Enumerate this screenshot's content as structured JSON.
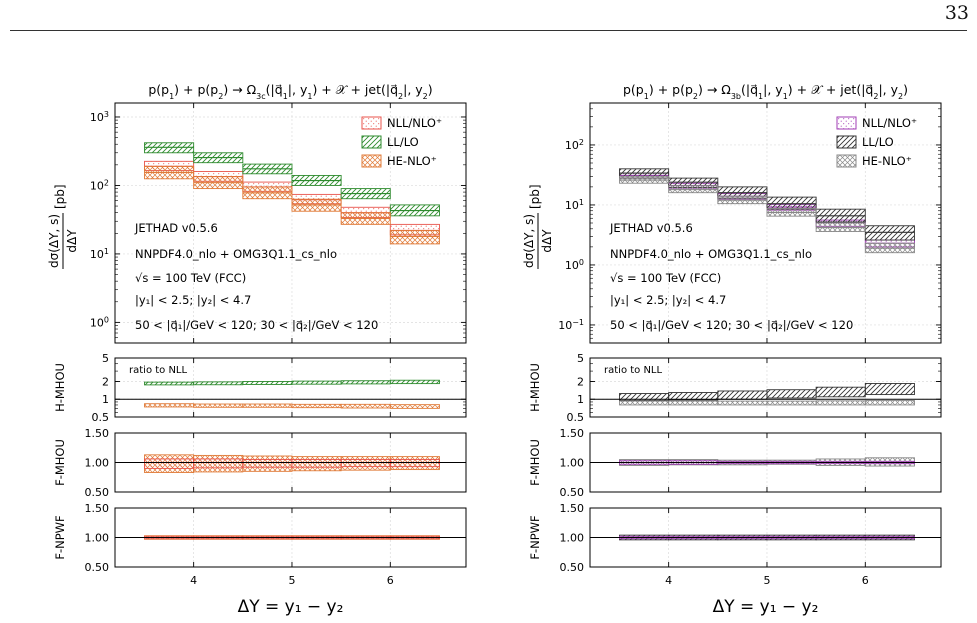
{
  "page": {
    "number": "33"
  },
  "chart_data": [
    {
      "type": "area",
      "panel": "left",
      "title": "p(p₁) + p(p₂) → Ω₃꜀(|q⃗₁|, y₁) + 𝒳 + jet(|q⃗₂|, y₂)",
      "title_parts": {
        "pre": "p(p",
        "s1": "1",
        "mid1": ") + p(p",
        "s2": "2",
        "mid2": ") → Ω",
        "sub": "3c",
        "post": "(|q⃗",
        "s3": "1",
        "c1": "|, y",
        "s4": "1",
        "c2": ") + 𝒳 + jet(|q⃗",
        "s5": "2",
        "c3": "|, y",
        "s6": "2",
        "end": ")"
      },
      "xlabel": "ΔY = y₁ − y₂",
      "ylabel": "dσ(ΔY, s)/dΔY [pb]",
      "x_ticks": [
        4,
        5,
        6
      ],
      "x_bins": [
        [
          3.5,
          4.0
        ],
        [
          4.0,
          4.5
        ],
        [
          4.5,
          5.0
        ],
        [
          5.0,
          5.5
        ],
        [
          5.5,
          6.0
        ],
        [
          6.0,
          6.5
        ]
      ],
      "xlim": [
        3.2,
        6.77
      ],
      "main": {
        "scale": "log",
        "ylim": [
          0.5,
          1600
        ],
        "y_ticks": [
          {
            "v": 1,
            "label": "10",
            "exp": "0"
          },
          {
            "v": 10,
            "label": "10",
            "exp": "1"
          },
          {
            "v": 100,
            "label": "10",
            "exp": "2"
          },
          {
            "v": 1000,
            "label": "10",
            "exp": "3"
          }
        ],
        "legend": {
          "position": "top-right",
          "entries": [
            "NLL/NLO⁺",
            "LL/LO",
            "HE-NLO⁺"
          ]
        },
        "annotations": [
          "JETHAD v0.5.6",
          "NNPDF4.0_nlo + OMG3Q1.1_cs_nlo",
          "√s = 100 TeV (FCC)",
          "|y₁| < 2.5;  |y₂| < 4.7",
          "50 < |q⃗₁|/GeV < 120;  30 < |q⃗₂|/GeV < 120"
        ],
        "series": [
          {
            "name": "NLL/NLO⁺",
            "color": "#e8534b",
            "pattern": "dots",
            "central": [
              190,
              135,
              95,
              62,
              40,
              22
            ],
            "low": [
              165,
              115,
              82,
              54,
              34,
              19
            ],
            "high": [
              225,
              160,
              112,
              74,
              48,
              27
            ]
          },
          {
            "name": "LL/LO",
            "color": "#2e8b2e",
            "pattern": "diag",
            "central": [
              360,
              255,
              175,
              118,
              76,
              43
            ],
            "low": [
              300,
              215,
              148,
              100,
              64,
              36
            ],
            "high": [
              420,
              300,
              205,
              140,
              90,
              52
            ]
          },
          {
            "name": "HE-NLO⁺",
            "color": "#e07b39",
            "pattern": "cross",
            "central": [
              155,
              110,
              78,
              52,
              33,
              18
            ],
            "low": [
              125,
              90,
              64,
              42,
              27,
              14
            ],
            "high": [
              190,
              135,
              95,
              63,
              40,
              22
            ]
          }
        ]
      },
      "ratio_panels": [
        {
          "ylabel": "H-MHOU",
          "scale": "log",
          "ylim": [
            0.5,
            5
          ],
          "y_ticks": [
            {
              "v": 0.5,
              "label": "0.5"
            },
            {
              "v": 1,
              "label": "1"
            },
            {
              "v": 2,
              "label": "2"
            },
            {
              "v": 5,
              "label": "5"
            }
          ],
          "refline": 1,
          "note": "ratio to NLL",
          "bands": [
            {
              "series": "LL/LO",
              "color": "#2e8b2e",
              "pattern": "diag",
              "low": [
                1.75,
                1.76,
                1.78,
                1.8,
                1.82,
                1.84
              ],
              "high": [
                1.95,
                1.97,
                2.0,
                2.03,
                2.06,
                2.1
              ]
            },
            {
              "series": "HE-NLO⁺",
              "color": "#e07b39",
              "pattern": "cross",
              "low": [
                0.74,
                0.73,
                0.73,
                0.72,
                0.71,
                0.7
              ],
              "high": [
                0.84,
                0.83,
                0.83,
                0.82,
                0.82,
                0.81
              ]
            }
          ]
        },
        {
          "ylabel": "F-MHOU",
          "scale": "linear",
          "ylim": [
            0.5,
            1.5
          ],
          "y_ticks": [
            {
              "v": 0.5,
              "label": "0.50"
            },
            {
              "v": 1.0,
              "label": "1.00"
            },
            {
              "v": 1.5,
              "label": "1.50"
            }
          ],
          "refline": 1,
          "bands": [
            {
              "series": "HE-NLO⁺",
              "color": "#e07b39",
              "pattern": "cross",
              "low": [
                0.83,
                0.84,
                0.85,
                0.86,
                0.87,
                0.88
              ],
              "high": [
                1.13,
                1.12,
                1.11,
                1.1,
                1.1,
                1.1
              ]
            },
            {
              "series": "NLL/NLO⁺",
              "color": "#e8534b",
              "pattern": "dots",
              "low": [
                0.9,
                0.91,
                0.92,
                0.92,
                0.93,
                0.93
              ],
              "high": [
                1.06,
                1.06,
                1.05,
                1.05,
                1.05,
                1.05
              ]
            }
          ]
        },
        {
          "ylabel": "F-NPWF",
          "scale": "linear",
          "ylim": [
            0.5,
            1.5
          ],
          "y_ticks": [
            {
              "v": 0.5,
              "label": "0.50"
            },
            {
              "v": 1.0,
              "label": "1.00"
            },
            {
              "v": 1.5,
              "label": "1.50"
            }
          ],
          "refline": 1,
          "bands": [
            {
              "series": "HE-NLO⁺",
              "color": "#e07b39",
              "pattern": "cross",
              "low": [
                0.97,
                0.97,
                0.97,
                0.97,
                0.97,
                0.97
              ],
              "high": [
                1.03,
                1.03,
                1.03,
                1.03,
                1.03,
                1.03
              ]
            },
            {
              "series": "NLL/NLO⁺",
              "color": "#e8534b",
              "pattern": "dots",
              "low": [
                0.98,
                0.98,
                0.98,
                0.98,
                0.98,
                0.98
              ],
              "high": [
                1.02,
                1.02,
                1.02,
                1.02,
                1.02,
                1.02
              ]
            }
          ]
        }
      ]
    },
    {
      "type": "area",
      "panel": "right",
      "title": "p(p₁) + p(p₂) → Ω₃ᵦ(|q⃗₁|, y₁) + 𝒳 + jet(|q⃗₂|, y₂)",
      "title_parts": {
        "pre": "p(p",
        "s1": "1",
        "mid1": ") + p(p",
        "s2": "2",
        "mid2": ") → Ω",
        "sub": "3b",
        "post": "(|q⃗",
        "s3": "1",
        "c1": "|, y",
        "s4": "1",
        "c2": ") + 𝒳 + jet(|q⃗",
        "s5": "2",
        "c3": "|, y",
        "s6": "2",
        "end": ")"
      },
      "xlabel": "ΔY = y₁ − y₂",
      "ylabel": "dσ(ΔY, s)/dΔY [pb]",
      "x_ticks": [
        4,
        5,
        6
      ],
      "x_bins": [
        [
          3.5,
          4.0
        ],
        [
          4.0,
          4.5
        ],
        [
          4.5,
          5.0
        ],
        [
          5.0,
          5.5
        ],
        [
          5.5,
          6.0
        ],
        [
          6.0,
          6.5
        ]
      ],
      "xlim": [
        3.2,
        6.77
      ],
      "main": {
        "scale": "log",
        "ylim": [
          0.05,
          500
        ],
        "y_ticks": [
          {
            "v": 0.1,
            "label": "10",
            "exp": "−1"
          },
          {
            "v": 1,
            "label": "10",
            "exp": "0"
          },
          {
            "v": 10,
            "label": "10",
            "exp": "1"
          },
          {
            "v": 100,
            "label": "10",
            "exp": "2"
          }
        ],
        "legend": {
          "position": "top-right",
          "entries": [
            "NLL/NLO⁺",
            "LL/LO",
            "HE-NLO⁺"
          ]
        },
        "annotations": [
          "JETHAD v0.5.6",
          "NNPDF4.0_nlo + OMG3Q1.1_cs_nlo",
          "√s = 100 TeV (FCC)",
          "|y₁| < 2.5;  |y₂| < 4.7",
          "50 < |q⃗₁|/GeV < 120;  30 < |q⃗₂|/GeV < 120"
        ],
        "series": [
          {
            "name": "NLL/NLO⁺",
            "color": "#a03cb4",
            "pattern": "dots",
            "central": [
              31,
              21,
              14,
              9.2,
              5.0,
              2.3
            ],
            "low": [
              28,
              19,
              12.5,
              8.2,
              4.4,
              2.0
            ],
            "high": [
              34,
              23,
              15.5,
              10.2,
              5.6,
              2.6
            ]
          },
          {
            "name": "LL/LO",
            "color": "#333333",
            "pattern": "diag",
            "central": [
              34,
              24,
              16,
              10.5,
              6.6,
              3.5
            ],
            "low": [
              28,
              19.5,
              13,
              8.5,
              5.2,
              2.6
            ],
            "high": [
              40,
              28,
              20,
              13.5,
              8.5,
              4.5
            ]
          },
          {
            "name": "HE-NLO⁺",
            "color": "#888888",
            "pattern": "cross",
            "central": [
              26,
              18,
              12,
              7.5,
              4.2,
              1.9
            ],
            "low": [
              23,
              16,
              10.5,
              6.5,
              3.6,
              1.6
            ],
            "high": [
              30,
              21,
              14,
              8.8,
              5.0,
              2.3
            ]
          }
        ]
      },
      "ratio_panels": [
        {
          "ylabel": "H-MHOU",
          "scale": "log",
          "ylim": [
            0.5,
            5
          ],
          "y_ticks": [
            {
              "v": 0.5,
              "label": "0.5"
            },
            {
              "v": 1,
              "label": "1"
            },
            {
              "v": 2,
              "label": "2"
            },
            {
              "v": 5,
              "label": "5"
            }
          ],
          "refline": 1,
          "note": "ratio to NLL",
          "bands": [
            {
              "series": "LL/LO",
              "color": "#333333",
              "pattern": "diag",
              "low": [
                0.95,
                0.97,
                1.0,
                1.05,
                1.1,
                1.2
              ],
              "high": [
                1.25,
                1.3,
                1.38,
                1.45,
                1.6,
                1.85
              ]
            },
            {
              "series": "HE-NLO⁺",
              "color": "#888888",
              "pattern": "cross",
              "low": [
                0.8,
                0.8,
                0.8,
                0.8,
                0.8,
                0.8
              ],
              "high": [
                0.93,
                0.93,
                0.93,
                0.93,
                0.94,
                0.95
              ]
            }
          ]
        },
        {
          "ylabel": "F-MHOU",
          "scale": "linear",
          "ylim": [
            0.5,
            1.5
          ],
          "y_ticks": [
            {
              "v": 0.5,
              "label": "0.50"
            },
            {
              "v": 1.0,
              "label": "1.00"
            },
            {
              "v": 1.5,
              "label": "1.50"
            }
          ],
          "refline": 1,
          "bands": [
            {
              "series": "HE-NLO⁺",
              "color": "#888888",
              "pattern": "cross",
              "low": [
                0.95,
                0.96,
                0.96,
                0.97,
                0.95,
                0.94
              ],
              "high": [
                1.05,
                1.05,
                1.04,
                1.04,
                1.06,
                1.08
              ]
            },
            {
              "series": "NLL/NLO⁺",
              "color": "#a03cb4",
              "pattern": "dots",
              "low": [
                0.97,
                0.97,
                0.98,
                0.98,
                0.98,
                0.98
              ],
              "high": [
                1.03,
                1.03,
                1.02,
                1.02,
                1.02,
                1.02
              ]
            }
          ]
        },
        {
          "ylabel": "F-NPWF",
          "scale": "linear",
          "ylim": [
            0.5,
            1.5
          ],
          "y_ticks": [
            {
              "v": 0.5,
              "label": "0.50"
            },
            {
              "v": 1.0,
              "label": "1.00"
            },
            {
              "v": 1.5,
              "label": "1.50"
            }
          ],
          "refline": 1,
          "bands": [
            {
              "series": "LL/LO",
              "color": "#333333",
              "pattern": "diag",
              "low": [
                0.96,
                0.96,
                0.96,
                0.96,
                0.96,
                0.96
              ],
              "high": [
                1.04,
                1.04,
                1.04,
                1.04,
                1.04,
                1.04
              ]
            },
            {
              "series": "NLL/NLO⁺",
              "color": "#a03cb4",
              "pattern": "dots",
              "low": [
                0.98,
                0.98,
                0.98,
                0.98,
                0.98,
                0.98
              ],
              "high": [
                1.02,
                1.02,
                1.02,
                1.02,
                1.02,
                1.02
              ]
            }
          ]
        }
      ]
    }
  ]
}
